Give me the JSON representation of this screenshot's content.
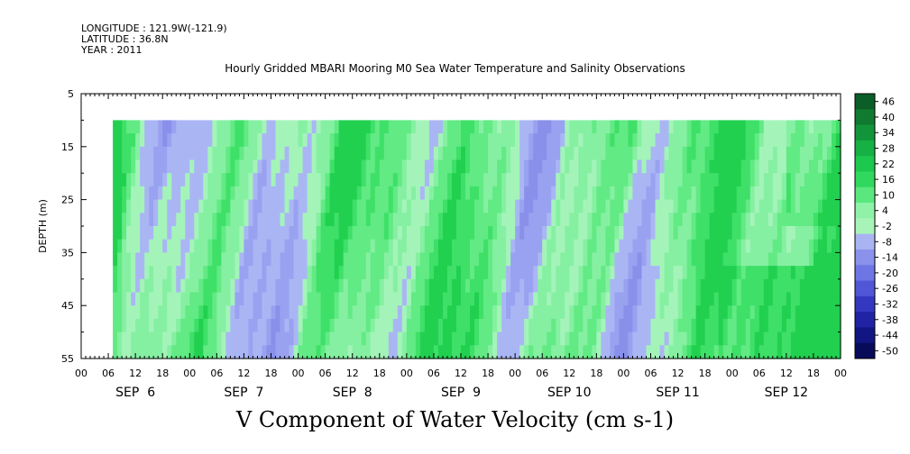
{
  "header": {
    "longitude": "LONGITUDE : 121.9W(-121.9)",
    "latitude": "LATITUDE : 36.8N",
    "year": "YEAR : 2011"
  },
  "chart_data": {
    "type": "heatmap",
    "title": "Hourly Gridded MBARI Mooring M0 Sea Water Temperature and Salinity Observations",
    "bottom_title": "V Component of Water Velocity (cm s-1)",
    "ylabel": "DEPTH (m)",
    "x_start": "2011-09-06 00:00",
    "x_end": "2011-09-13 00:00",
    "data_start": "2011-09-06 07:00",
    "data_end": "2011-09-12 23:00",
    "ylim": [
      5,
      55
    ],
    "y_inverted": true,
    "data_depth_range": [
      10,
      55
    ],
    "y_tick_labels": [
      "5",
      "15",
      "25",
      "35",
      "45",
      "55"
    ],
    "x_hour_labels": [
      "00",
      "06",
      "12",
      "18"
    ],
    "final_hour_label": "00",
    "x_day_labels": [
      "SEP  6",
      "SEP  7",
      "SEP  8",
      "SEP  9",
      "SEP 10",
      "SEP 11",
      "SEP 12"
    ],
    "colorbar": {
      "labels": [
        "46",
        "40",
        "34",
        "28",
        "22",
        "16",
        "10",
        "4",
        "-2",
        "-8",
        "-14",
        "-20",
        "-26",
        "-32",
        "-38",
        "-44",
        "-50"
      ],
      "colors": [
        "#0b5e28",
        "#0f7a30",
        "#12953a",
        "#16b044",
        "#1cc84e",
        "#30d85e",
        "#5ae87e",
        "#90f2a8",
        "#a8f4b8",
        "#aab4f2",
        "#8a92ec",
        "#6e76e6",
        "#5056d6",
        "#3438c0",
        "#2024a4",
        "#121682",
        "#080a5a"
      ]
    },
    "field_description": "V velocity alternates in vertical bands between weak positive (light green, ~4 to 16) and weak negative (light blue-purple, ~-2 to -14) values over 5 days; stronger positive flow (green, ~16 to 22) near 15-25 m on Sep 6 and Sep 12, and deeper (40-55 m) on Sep 11-12."
  }
}
